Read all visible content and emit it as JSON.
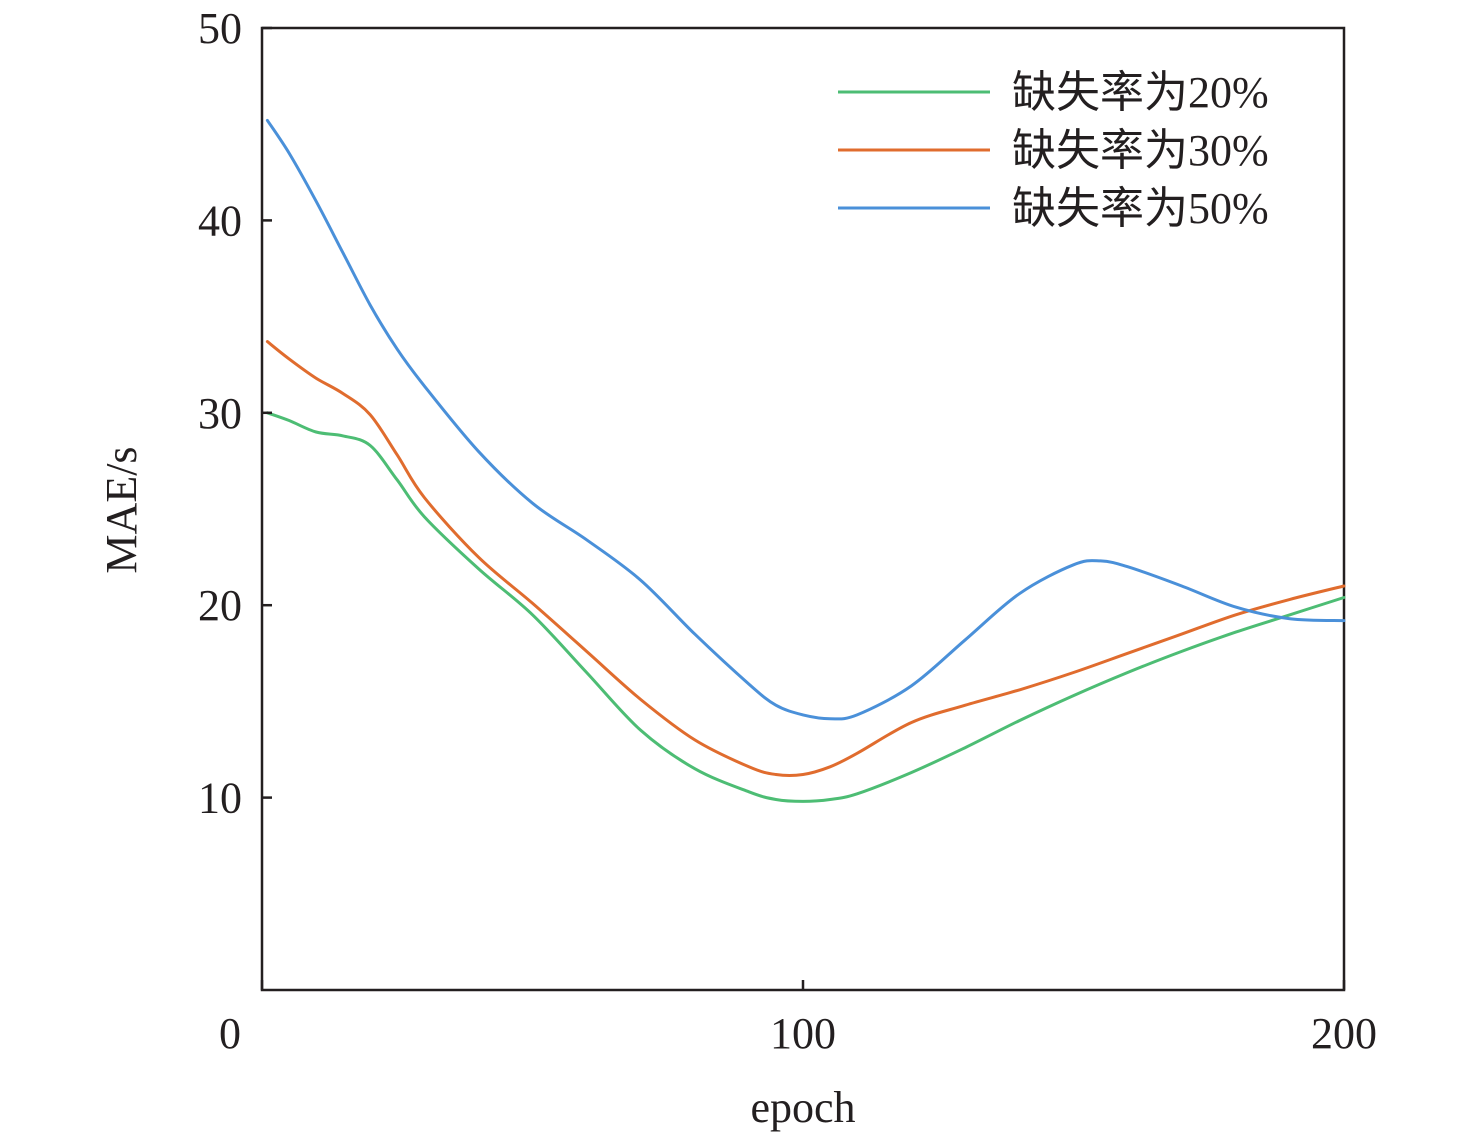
{
  "chart_data": {
    "type": "line",
    "xlabel": "epoch",
    "ylabel": "MAE/s",
    "xlim": [
      0,
      200
    ],
    "ylim": [
      0,
      50
    ],
    "xticks": [
      0,
      100,
      200
    ],
    "xtick_labels": [
      "0",
      "100",
      "200"
    ],
    "yticks": [
      10,
      20,
      30,
      40,
      50
    ],
    "ytick_labels": [
      "10",
      "20",
      "30",
      "40",
      "50"
    ],
    "legend_position": "top-right",
    "grid": false,
    "series": [
      {
        "name": "缺失率为20%",
        "color": "#4dbd74",
        "x": [
          1,
          5,
          10,
          15,
          20,
          25,
          30,
          40,
          50,
          60,
          70,
          80,
          90,
          95,
          100,
          105,
          110,
          120,
          130,
          140,
          150,
          160,
          170,
          180,
          190,
          200
        ],
        "y": [
          30.0,
          29.6,
          29.0,
          28.8,
          28.3,
          26.5,
          24.6,
          21.9,
          19.5,
          16.5,
          13.5,
          11.5,
          10.3,
          9.9,
          9.8,
          9.9,
          10.2,
          11.3,
          12.6,
          14.0,
          15.3,
          16.5,
          17.6,
          18.6,
          19.5,
          20.4
        ]
      },
      {
        "name": "缺失率为30%",
        "color": "#e06c2e",
        "x": [
          1,
          5,
          10,
          15,
          20,
          25,
          30,
          40,
          50,
          60,
          70,
          80,
          90,
          95,
          100,
          105,
          110,
          120,
          130,
          140,
          150,
          160,
          170,
          180,
          190,
          200
        ],
        "y": [
          33.7,
          32.8,
          31.8,
          31.0,
          29.9,
          27.8,
          25.6,
          22.5,
          20.1,
          17.6,
          15.1,
          13.0,
          11.6,
          11.2,
          11.2,
          11.6,
          12.3,
          13.9,
          14.8,
          15.6,
          16.5,
          17.5,
          18.5,
          19.5,
          20.3,
          21.0
        ]
      },
      {
        "name": "缺失率为50%",
        "color": "#4a90d9",
        "x": [
          1,
          5,
          10,
          15,
          20,
          25,
          30,
          40,
          50,
          60,
          70,
          80,
          90,
          95,
          100,
          105,
          110,
          120,
          130,
          140,
          150,
          155,
          160,
          170,
          180,
          190,
          200
        ],
        "y": [
          45.2,
          43.5,
          41.0,
          38.3,
          35.6,
          33.3,
          31.4,
          28.0,
          25.3,
          23.4,
          21.3,
          18.5,
          15.9,
          14.8,
          14.3,
          14.1,
          14.3,
          15.8,
          18.2,
          20.6,
          22.1,
          22.3,
          22.0,
          21.0,
          19.9,
          19.3,
          19.2
        ]
      }
    ]
  }
}
